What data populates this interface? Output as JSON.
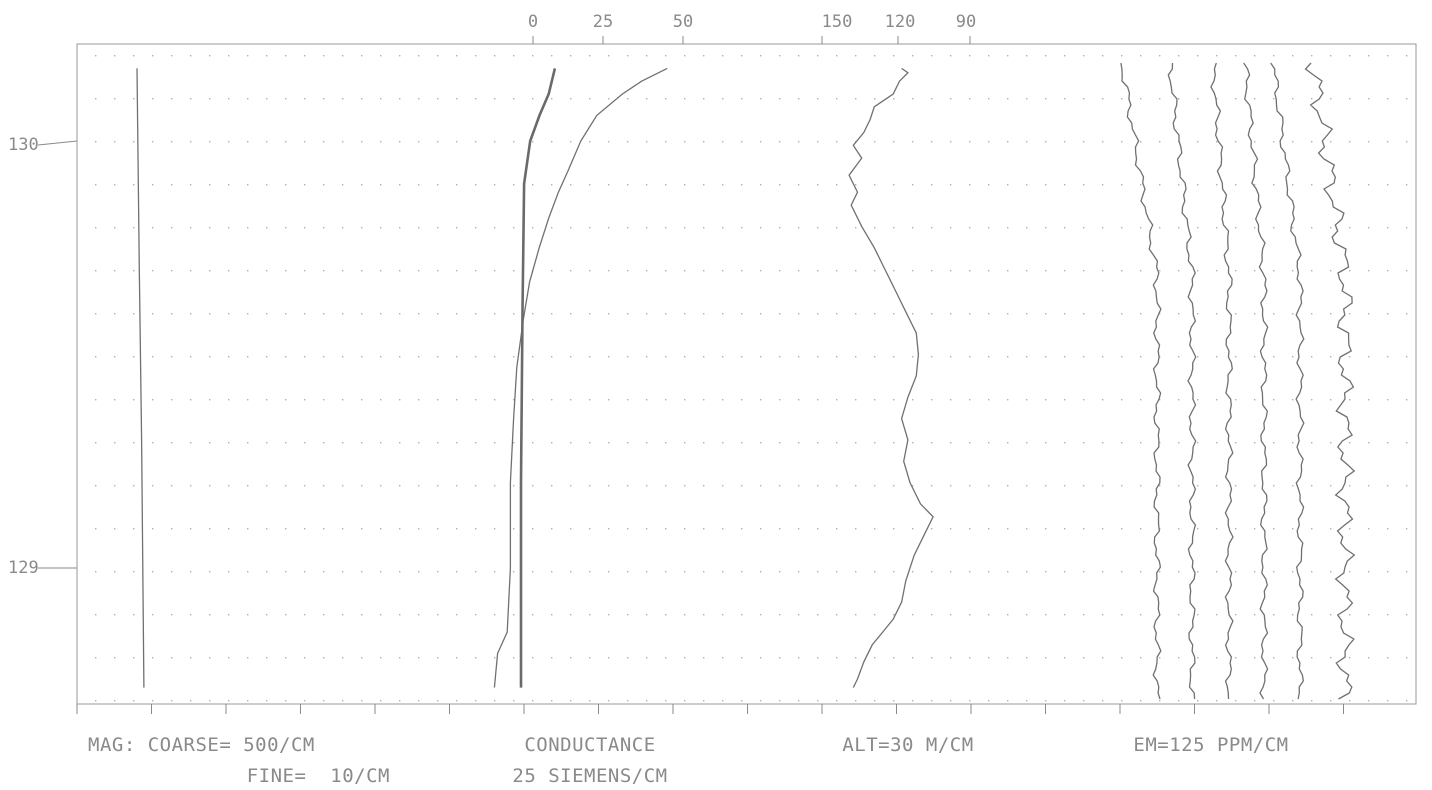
{
  "chart_data": {
    "type": "line",
    "title": "",
    "x_axis_top": {
      "conductance_ticks": [
        "0",
        "25",
        "50"
      ],
      "altitude_ticks": [
        "150",
        "120",
        "90"
      ]
    },
    "y_axis": {
      "ticks": [
        "130",
        "129"
      ],
      "range": [
        128.7,
        130.18
      ]
    },
    "scales": {
      "mag_line1": "MAG: COARSE= 500/CM",
      "mag_line2": "FINE=  10/CM",
      "conductance_line1": "CONDUCTANCE",
      "conductance_line2": "25 SIEMENS/CM",
      "altitude": "ALT=30 M/CM",
      "em": "EM=125 PPM/CM"
    },
    "grid": true,
    "series": [
      {
        "key": "mag_coarse",
        "points": [
          [
            0.0,
            130.17
          ],
          [
            1.0,
            129.7
          ],
          [
            2.0,
            129.3
          ],
          [
            3.0,
            128.72
          ]
        ]
      },
      {
        "key": "mag_fine",
        "points": [
          [
            -8,
            128.72
          ],
          [
            -7,
            128.8
          ],
          [
            -4,
            128.85
          ],
          [
            -3,
            129.0
          ],
          [
            -3,
            129.2
          ],
          [
            -2,
            129.35
          ],
          [
            -1,
            129.47
          ],
          [
            1,
            129.58
          ],
          [
            3,
            129.67
          ],
          [
            6,
            129.75
          ],
          [
            9,
            129.82
          ],
          [
            12,
            129.88
          ],
          [
            15,
            129.93
          ],
          [
            19,
            130.0
          ],
          [
            24,
            130.06
          ],
          [
            32,
            130.11
          ],
          [
            38,
            130.14
          ],
          [
            46,
            130.17
          ]
        ]
      },
      {
        "key": "conductance",
        "points": [
          [
            0,
            128.72
          ],
          [
            0,
            129.2
          ],
          [
            0.5,
            129.6
          ],
          [
            1,
            129.9
          ],
          [
            3,
            130.0
          ],
          [
            6,
            130.06
          ],
          [
            9,
            130.11
          ],
          [
            11,
            130.17
          ]
        ]
      },
      {
        "key": "altitude",
        "points": [
          [
            147,
            128.72
          ],
          [
            145,
            128.74
          ],
          [
            142,
            128.78
          ],
          [
            138,
            128.82
          ],
          [
            133,
            128.85
          ],
          [
            128,
            128.88
          ],
          [
            124,
            128.92
          ],
          [
            122,
            128.97
          ],
          [
            118,
            129.03
          ],
          [
            113,
            129.08
          ],
          [
            109,
            129.12
          ],
          [
            115,
            129.15
          ],
          [
            120,
            129.2
          ],
          [
            123,
            129.25
          ],
          [
            121,
            129.3
          ],
          [
            124,
            129.35
          ],
          [
            121,
            129.4
          ],
          [
            117,
            129.45
          ],
          [
            116,
            129.5
          ],
          [
            117,
            129.55
          ],
          [
            122,
            129.6
          ],
          [
            127,
            129.65
          ],
          [
            132,
            129.7
          ],
          [
            137,
            129.75
          ],
          [
            143,
            129.8
          ],
          [
            148,
            129.85
          ],
          [
            145,
            129.88
          ],
          [
            149,
            129.92
          ],
          [
            143,
            129.96
          ],
          [
            147,
            129.99
          ],
          [
            142,
            130.02
          ],
          [
            139,
            130.05
          ],
          [
            137,
            130.08
          ],
          [
            128,
            130.11
          ],
          [
            125,
            130.14
          ],
          [
            121,
            130.16
          ],
          [
            124,
            130.17
          ]
        ]
      }
    ],
    "em_channels": 6
  }
}
